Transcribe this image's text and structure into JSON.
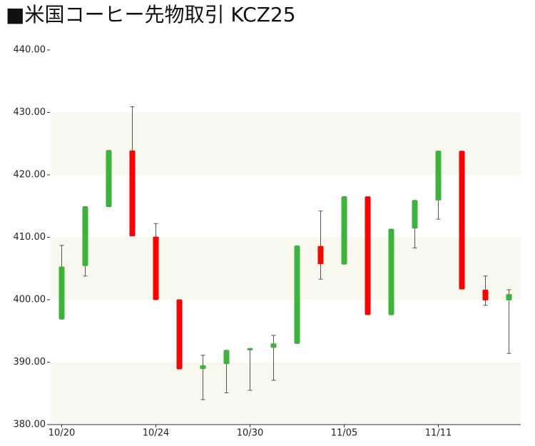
{
  "chart_data": {
    "type": "candlestick",
    "title": "■米国コーヒー先物取引 KCZ25",
    "categories": [
      "10/20",
      null,
      null,
      null,
      "10/24",
      null,
      null,
      null,
      "10/30",
      null,
      null,
      null,
      "11/05",
      null,
      null,
      null,
      "11/11",
      null,
      null,
      null
    ],
    "open": [
      396.9,
      405.4,
      414.9,
      423.9,
      410.1,
      400.0,
      388.9,
      389.7,
      391.9,
      392.3,
      393.0,
      408.6,
      405.7,
      416.5,
      397.6,
      411.4,
      415.9,
      423.8,
      401.6,
      399.9
    ],
    "high": [
      408.7,
      414.9,
      423.9,
      430.9,
      412.2,
      400.0,
      391.1,
      391.9,
      392.2,
      394.3,
      408.6,
      414.2,
      416.5,
      416.5,
      411.3,
      415.9,
      423.8,
      423.8,
      403.8,
      401.6
    ],
    "low": [
      396.9,
      403.8,
      414.9,
      410.2,
      400.0,
      388.9,
      384.0,
      385.1,
      385.5,
      387.1,
      393.0,
      403.3,
      405.7,
      397.6,
      397.6,
      408.3,
      412.9,
      401.7,
      399.1,
      391.4
    ],
    "close": [
      405.3,
      414.9,
      423.9,
      410.2,
      400.0,
      388.9,
      389.5,
      391.9,
      392.2,
      393.0,
      408.6,
      405.7,
      416.5,
      397.6,
      411.3,
      415.9,
      423.8,
      401.7,
      399.9,
      400.9
    ],
    "up_color": "#3cb43c",
    "down_color": "#ff0000",
    "wick_color": "#555555",
    "band_color": "#f9f8ef",
    "ylim": [
      380,
      440
    ],
    "yticks": [
      {
        "value": 380,
        "label": "380.00"
      },
      {
        "value": 390,
        "label": "390.00"
      },
      {
        "value": 400,
        "label": "400.00"
      },
      {
        "value": 410,
        "label": "410.00"
      },
      {
        "value": 420,
        "label": "420.00"
      },
      {
        "value": 430,
        "label": "430.00"
      },
      {
        "value": 440,
        "label": "440.00"
      }
    ],
    "banded_grid": true
  }
}
